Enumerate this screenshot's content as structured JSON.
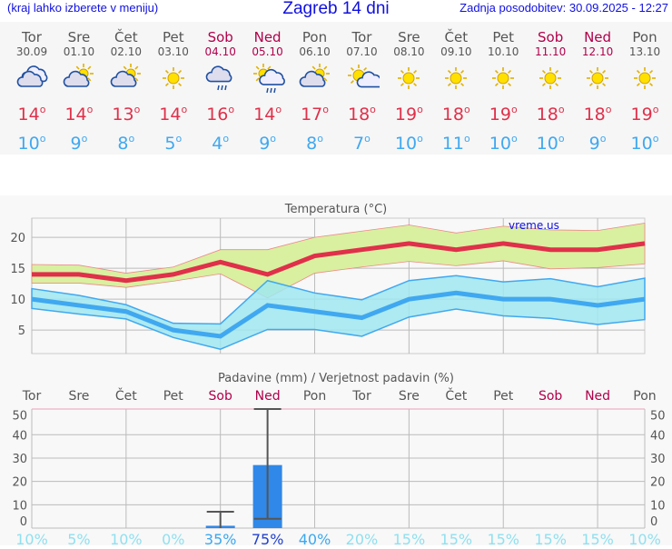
{
  "header": {
    "hint": "(kraj lahko izberete v meniju)",
    "title": "Zagreb 14 dni",
    "updated": "Zadnja posodobitev: 30.09.2025 - 12:27"
  },
  "days": [
    {
      "name": "Tor",
      "date": "30.09",
      "icon": "cloudy-icon",
      "max": "14",
      "min": "10",
      "weekend": false,
      "rain_pct": "10%"
    },
    {
      "name": "Sre",
      "date": "01.10",
      "icon": "partly-cloudy-icon",
      "max": "14",
      "min": "9",
      "weekend": false,
      "rain_pct": "5%"
    },
    {
      "name": "Čet",
      "date": "02.10",
      "icon": "partly-cloudy-icon",
      "max": "13",
      "min": "8",
      "weekend": false,
      "rain_pct": "10%"
    },
    {
      "name": "Pet",
      "date": "03.10",
      "icon": "sun-icon",
      "max": "14",
      "min": "5",
      "weekend": false,
      "rain_pct": "0%"
    },
    {
      "name": "Sob",
      "date": "04.10",
      "icon": "cloud-rain-icon",
      "max": "16",
      "min": "4",
      "weekend": true,
      "rain_pct": "35%"
    },
    {
      "name": "Ned",
      "date": "05.10",
      "icon": "sun-cloud-rain-icon",
      "max": "14",
      "min": "9",
      "weekend": true,
      "rain_pct": "75%"
    },
    {
      "name": "Pon",
      "date": "06.10",
      "icon": "partly-cloudy-icon",
      "max": "17",
      "min": "8",
      "weekend": false,
      "rain_pct": "40%"
    },
    {
      "name": "Tor",
      "date": "07.10",
      "icon": "mostly-sunny-icon",
      "max": "18",
      "min": "7",
      "weekend": false,
      "rain_pct": "20%"
    },
    {
      "name": "Sre",
      "date": "08.10",
      "icon": "sun-icon",
      "max": "19",
      "min": "10",
      "weekend": false,
      "rain_pct": "15%"
    },
    {
      "name": "Čet",
      "date": "09.10",
      "icon": "sun-icon",
      "max": "18",
      "min": "11",
      "weekend": false,
      "rain_pct": "15%"
    },
    {
      "name": "Pet",
      "date": "10.10",
      "icon": "sun-icon",
      "max": "19",
      "min": "10",
      "weekend": false,
      "rain_pct": "15%"
    },
    {
      "name": "Sob",
      "date": "11.10",
      "icon": "sun-icon",
      "max": "18",
      "min": "10",
      "weekend": true,
      "rain_pct": "15%"
    },
    {
      "name": "Ned",
      "date": "12.10",
      "icon": "sun-icon",
      "max": "18",
      "min": "9",
      "weekend": true,
      "rain_pct": "15%"
    },
    {
      "name": "Pon",
      "date": "13.10",
      "icon": "sun-icon",
      "max": "19",
      "min": "10",
      "weekend": false,
      "rain_pct": "10%"
    }
  ],
  "colors": {
    "max": "#e0304a",
    "min": "#40a8f0",
    "weekend": "#b0004a",
    "max_band": "#d8f0a0",
    "min_band": "#a0e8f0",
    "bar": "#3088e8"
  },
  "chart_data": [
    {
      "type": "line",
      "title": "Temperatura (°C)",
      "watermark": "vreme.us",
      "ylim": [
        1.2,
        23.1
      ],
      "yticks": [
        5,
        10,
        15,
        20
      ],
      "grid": true,
      "series": [
        {
          "values": [
            14,
            14,
            13,
            14,
            16,
            14,
            17,
            18,
            19,
            18,
            19,
            18,
            18,
            19
          ],
          "band_upper": [
            15.6,
            15.5,
            14.2,
            15.2,
            18,
            18,
            20,
            21,
            22,
            20.7,
            21.8,
            21.2,
            21.1,
            22.3
          ],
          "band_lower": [
            12.6,
            12.6,
            11.9,
            12.9,
            14.1,
            10.2,
            14.2,
            15.2,
            16.1,
            15.4,
            16.2,
            14.9,
            15.1,
            15.7
          ]
        },
        {
          "values": [
            10,
            9,
            8,
            5,
            4,
            9,
            8,
            7,
            10,
            11,
            10,
            10,
            9,
            10
          ],
          "band_upper": [
            11.7,
            10.6,
            9.1,
            6.1,
            6,
            13,
            11,
            9.9,
            13,
            13.8,
            12.8,
            13.3,
            12,
            13.4
          ],
          "band_lower": [
            8.5,
            7.6,
            6.8,
            3.8,
            1.9,
            5.1,
            5.1,
            4,
            7.1,
            8.4,
            7.3,
            6.9,
            5.9,
            6.7
          ]
        }
      ]
    },
    {
      "type": "bar",
      "title": "Padavine (mm) / Verjetnost padavin (%)",
      "ylim": [
        0,
        51
      ],
      "yticks": [
        0,
        10,
        20,
        30,
        40,
        50
      ],
      "grid": true,
      "values": [
        0,
        0,
        0,
        0,
        1,
        27,
        0,
        0,
        0,
        0,
        0,
        0,
        0,
        0
      ],
      "err_low": [
        null,
        null,
        null,
        null,
        0,
        4,
        null,
        null,
        null,
        null,
        null,
        null,
        null,
        null
      ],
      "err_high": [
        null,
        null,
        null,
        null,
        7,
        51,
        null,
        null,
        null,
        null,
        null,
        null,
        null,
        null
      ]
    }
  ]
}
